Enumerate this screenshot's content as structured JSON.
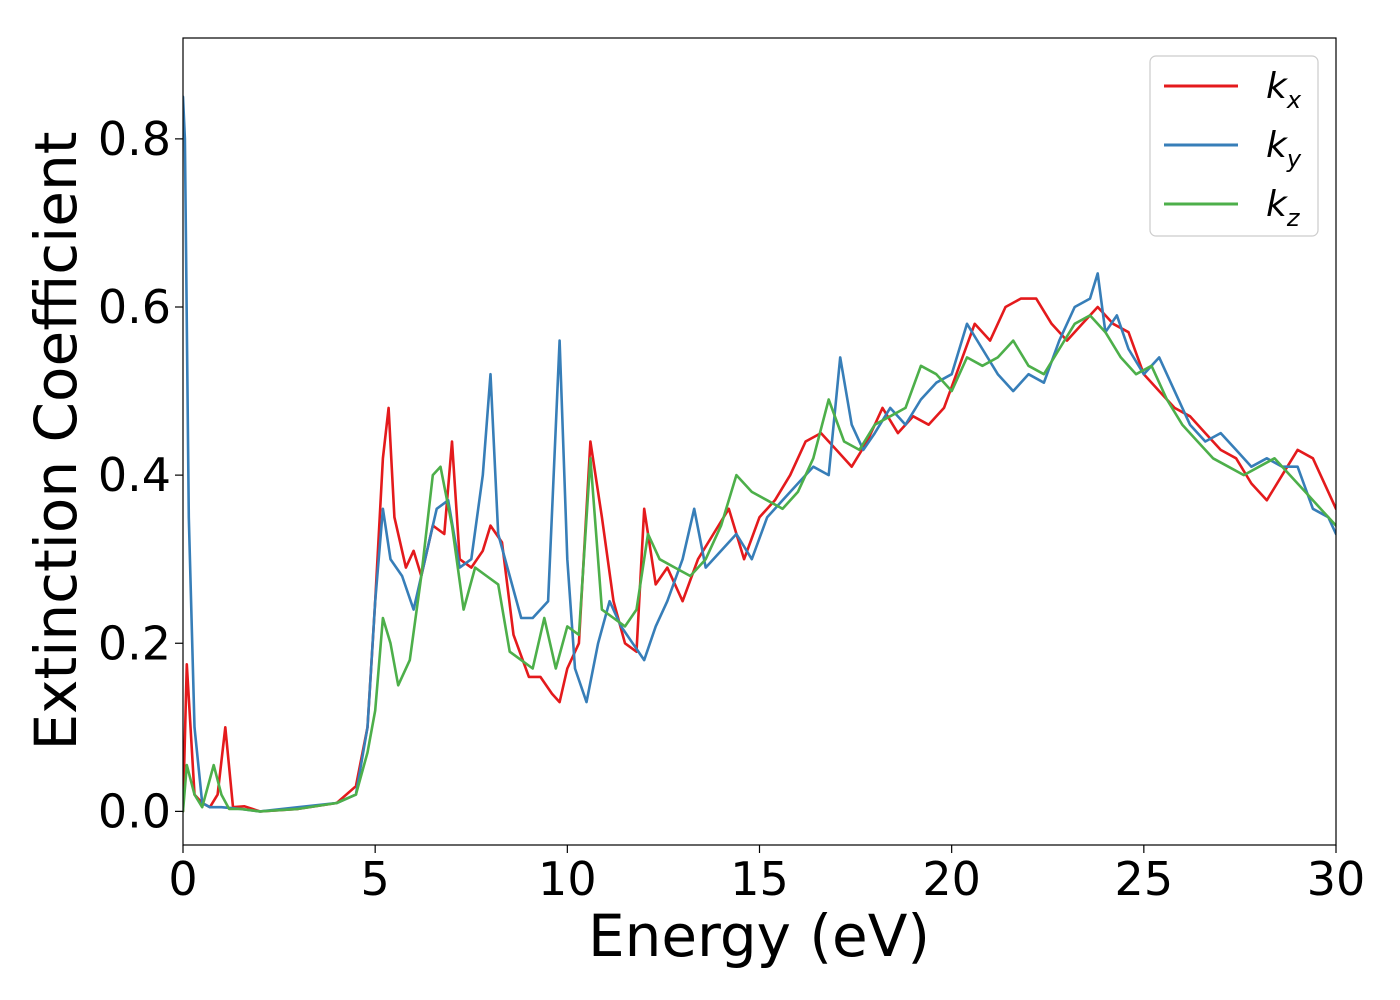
{
  "chart_data": {
    "type": "line",
    "xlabel": "Energy (eV)",
    "ylabel": "Extinction Coefficient",
    "xlim": [
      0,
      30
    ],
    "ylim": [
      -0.04,
      0.92
    ],
    "xticks": [
      0,
      5,
      10,
      15,
      20,
      25,
      30
    ],
    "xtick_labels": [
      "0",
      "5",
      "10",
      "15",
      "20",
      "25",
      "30"
    ],
    "yticks": [
      0.0,
      0.2,
      0.4,
      0.6,
      0.8
    ],
    "ytick_labels": [
      "0.0",
      "0.2",
      "0.4",
      "0.6",
      "0.8"
    ],
    "grid": false,
    "legend_position": "top-right",
    "series": [
      {
        "name": "k_x",
        "label_main": "k",
        "label_sub": "x",
        "color": "#e41a1c",
        "x": [
          0,
          0.1,
          0.3,
          0.5,
          0.7,
          0.9,
          1.1,
          1.3,
          1.6,
          2,
          3,
          4,
          4.5,
          4.8,
          5.0,
          5.2,
          5.35,
          5.5,
          5.8,
          6.0,
          6.2,
          6.5,
          6.8,
          7.0,
          7.2,
          7.5,
          7.8,
          8.0,
          8.3,
          8.6,
          9.0,
          9.3,
          9.6,
          9.8,
          10.0,
          10.3,
          10.6,
          10.9,
          11.2,
          11.5,
          11.8,
          12.0,
          12.3,
          12.6,
          13.0,
          13.4,
          13.8,
          14.2,
          14.6,
          15.0,
          15.4,
          15.8,
          16.2,
          16.6,
          17.0,
          17.4,
          17.8,
          18.2,
          18.6,
          19.0,
          19.4,
          19.8,
          20.2,
          20.6,
          21.0,
          21.4,
          21.8,
          22.2,
          22.6,
          23.0,
          23.4,
          23.8,
          24.2,
          24.6,
          25.0,
          25.4,
          25.8,
          26.2,
          26.6,
          27.0,
          27.4,
          27.8,
          28.2,
          28.6,
          29.0,
          29.4,
          29.8,
          30.0
        ],
        "y": [
          0.0,
          0.175,
          0.02,
          0.01,
          0.005,
          0.02,
          0.1,
          0.005,
          0.006,
          0.0,
          0.003,
          0.01,
          0.03,
          0.1,
          0.25,
          0.42,
          0.48,
          0.35,
          0.29,
          0.31,
          0.28,
          0.34,
          0.33,
          0.44,
          0.3,
          0.29,
          0.31,
          0.34,
          0.32,
          0.21,
          0.16,
          0.16,
          0.14,
          0.13,
          0.17,
          0.2,
          0.44,
          0.35,
          0.25,
          0.2,
          0.19,
          0.36,
          0.27,
          0.29,
          0.25,
          0.3,
          0.33,
          0.36,
          0.3,
          0.35,
          0.37,
          0.4,
          0.44,
          0.45,
          0.43,
          0.41,
          0.44,
          0.48,
          0.45,
          0.47,
          0.46,
          0.48,
          0.53,
          0.58,
          0.56,
          0.6,
          0.61,
          0.61,
          0.58,
          0.56,
          0.58,
          0.6,
          0.58,
          0.57,
          0.52,
          0.5,
          0.48,
          0.47,
          0.45,
          0.43,
          0.42,
          0.39,
          0.37,
          0.4,
          0.43,
          0.42,
          0.38,
          0.36
        ]
      },
      {
        "name": "k_y",
        "label_main": "k",
        "label_sub": "y",
        "color": "#377eb8",
        "x": [
          0,
          0.05,
          0.15,
          0.3,
          0.5,
          0.7,
          1.0,
          1.5,
          2.0,
          3.0,
          4.0,
          4.5,
          4.8,
          5.0,
          5.2,
          5.4,
          5.7,
          6.0,
          6.3,
          6.6,
          6.9,
          7.2,
          7.5,
          7.8,
          8.0,
          8.2,
          8.5,
          8.8,
          9.1,
          9.5,
          9.8,
          10.0,
          10.2,
          10.5,
          10.8,
          11.1,
          11.4,
          11.7,
          12.0,
          12.3,
          12.6,
          13.0,
          13.3,
          13.6,
          14.0,
          14.4,
          14.8,
          15.2,
          15.6,
          16.0,
          16.4,
          16.8,
          17.1,
          17.4,
          17.7,
          18.0,
          18.4,
          18.8,
          19.2,
          19.6,
          20.0,
          20.4,
          20.8,
          21.2,
          21.6,
          22.0,
          22.4,
          22.8,
          23.2,
          23.6,
          23.8,
          24.0,
          24.3,
          24.6,
          25.0,
          25.4,
          25.8,
          26.2,
          26.6,
          27.0,
          27.4,
          27.8,
          28.2,
          28.6,
          29.0,
          29.4,
          29.8,
          30.0
        ],
        "y": [
          0.85,
          0.8,
          0.35,
          0.1,
          0.01,
          0.005,
          0.005,
          0.003,
          0.0,
          0.005,
          0.01,
          0.02,
          0.1,
          0.25,
          0.36,
          0.3,
          0.28,
          0.24,
          0.3,
          0.36,
          0.37,
          0.29,
          0.3,
          0.4,
          0.52,
          0.33,
          0.28,
          0.23,
          0.23,
          0.25,
          0.56,
          0.3,
          0.17,
          0.13,
          0.2,
          0.25,
          0.22,
          0.2,
          0.18,
          0.22,
          0.25,
          0.3,
          0.36,
          0.29,
          0.31,
          0.33,
          0.3,
          0.35,
          0.37,
          0.39,
          0.41,
          0.4,
          0.54,
          0.46,
          0.43,
          0.45,
          0.48,
          0.46,
          0.49,
          0.51,
          0.52,
          0.58,
          0.55,
          0.52,
          0.5,
          0.52,
          0.51,
          0.56,
          0.6,
          0.61,
          0.64,
          0.57,
          0.59,
          0.55,
          0.52,
          0.54,
          0.5,
          0.46,
          0.44,
          0.45,
          0.43,
          0.41,
          0.42,
          0.41,
          0.41,
          0.36,
          0.35,
          0.33
        ]
      },
      {
        "name": "k_z",
        "label_main": "k",
        "label_sub": "z",
        "color": "#4daf4a",
        "x": [
          0,
          0.1,
          0.3,
          0.5,
          0.8,
          1.0,
          1.2,
          1.5,
          2.0,
          3.0,
          4.0,
          4.5,
          4.8,
          5.0,
          5.2,
          5.4,
          5.6,
          5.9,
          6.2,
          6.5,
          6.7,
          7.0,
          7.3,
          7.6,
          7.9,
          8.2,
          8.5,
          8.8,
          9.1,
          9.4,
          9.7,
          10.0,
          10.3,
          10.6,
          10.9,
          11.2,
          11.5,
          11.8,
          12.1,
          12.4,
          12.8,
          13.2,
          13.6,
          14.0,
          14.4,
          14.8,
          15.2,
          15.6,
          16.0,
          16.4,
          16.8,
          17.2,
          17.6,
          18.0,
          18.4,
          18.8,
          19.2,
          19.6,
          20.0,
          20.4,
          20.8,
          21.2,
          21.6,
          22.0,
          22.4,
          22.8,
          23.2,
          23.6,
          24.0,
          24.4,
          24.8,
          25.2,
          25.6,
          26.0,
          26.4,
          26.8,
          27.2,
          27.6,
          28.0,
          28.4,
          28.8,
          29.2,
          29.6,
          30.0
        ],
        "y": [
          0.0,
          0.055,
          0.02,
          0.005,
          0.055,
          0.02,
          0.003,
          0.003,
          0.0,
          0.003,
          0.01,
          0.02,
          0.07,
          0.12,
          0.23,
          0.2,
          0.15,
          0.18,
          0.28,
          0.4,
          0.41,
          0.34,
          0.24,
          0.29,
          0.28,
          0.27,
          0.19,
          0.18,
          0.17,
          0.23,
          0.17,
          0.22,
          0.21,
          0.42,
          0.24,
          0.23,
          0.22,
          0.24,
          0.33,
          0.3,
          0.29,
          0.28,
          0.3,
          0.34,
          0.4,
          0.38,
          0.37,
          0.36,
          0.38,
          0.42,
          0.49,
          0.44,
          0.43,
          0.46,
          0.47,
          0.48,
          0.53,
          0.52,
          0.5,
          0.54,
          0.53,
          0.54,
          0.56,
          0.53,
          0.52,
          0.55,
          0.58,
          0.59,
          0.57,
          0.54,
          0.52,
          0.53,
          0.49,
          0.46,
          0.44,
          0.42,
          0.41,
          0.4,
          0.41,
          0.42,
          0.4,
          0.38,
          0.36,
          0.34
        ]
      }
    ]
  }
}
